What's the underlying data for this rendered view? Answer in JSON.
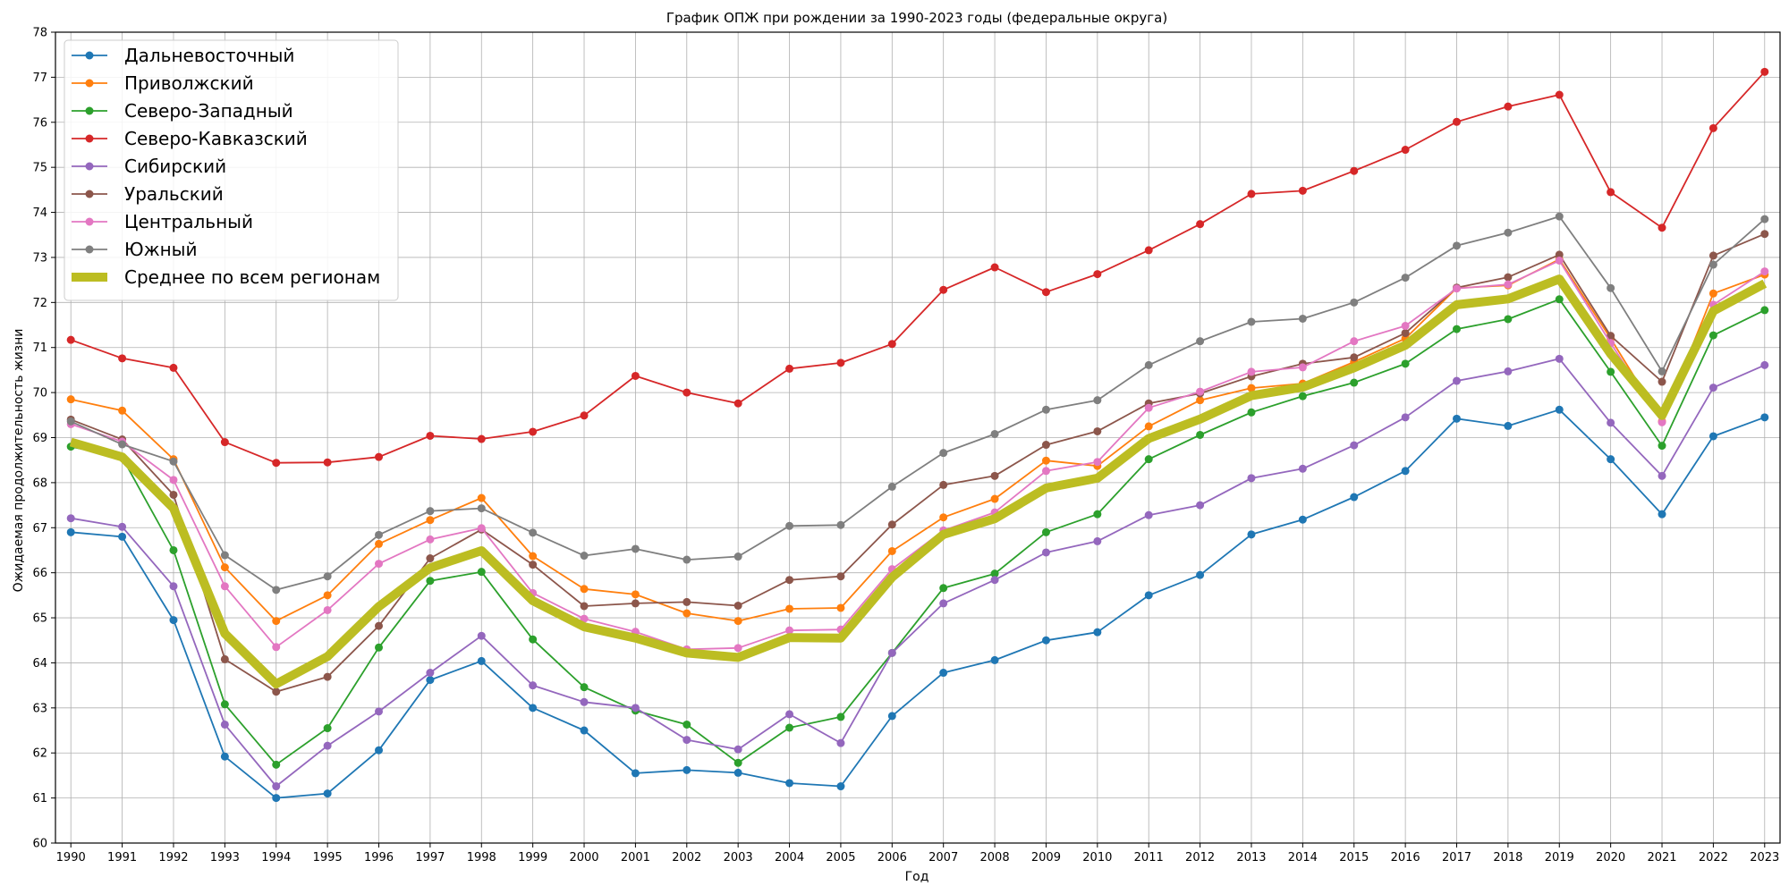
{
  "chart_data": {
    "type": "line",
    "title": "График ОПЖ при рождении за 1990-2023 годы (федеральные округа)",
    "xlabel": "Год",
    "ylabel": "Ожидаемая продолжительность жизни",
    "x": [
      1990,
      1991,
      1992,
      1993,
      1994,
      1995,
      1996,
      1997,
      1998,
      1999,
      2000,
      2001,
      2002,
      2003,
      2004,
      2005,
      2006,
      2007,
      2008,
      2009,
      2010,
      2011,
      2012,
      2013,
      2014,
      2015,
      2016,
      2017,
      2018,
      2019,
      2020,
      2021,
      2022,
      2023
    ],
    "xlim": [
      1989.7,
      2023.3
    ],
    "ylim": [
      60,
      78
    ],
    "yticks": [
      60,
      61,
      62,
      63,
      64,
      65,
      66,
      67,
      68,
      69,
      70,
      71,
      72,
      73,
      74,
      75,
      76,
      77,
      78
    ],
    "grid": true,
    "legend_position": "top-left",
    "series": [
      {
        "name": "Дальневосточный",
        "color": "#1f77b4",
        "marker": "circle",
        "values": [
          66.9,
          66.8,
          64.95,
          61.92,
          61.0,
          61.1,
          62.06,
          63.62,
          64.04,
          63.0,
          62.5,
          61.55,
          61.62,
          61.56,
          61.33,
          61.26,
          62.82,
          63.78,
          64.06,
          64.5,
          64.68,
          65.5,
          65.95,
          66.85,
          67.18,
          67.68,
          68.26,
          69.42,
          69.26,
          69.62,
          68.52,
          67.3,
          69.03,
          69.45
        ]
      },
      {
        "name": "Приволжский",
        "color": "#ff7f0e",
        "marker": "circle",
        "values": [
          69.85,
          69.6,
          68.52,
          66.12,
          64.93,
          65.5,
          66.64,
          67.17,
          67.66,
          66.37,
          65.64,
          65.52,
          65.1,
          64.93,
          65.2,
          65.22,
          66.48,
          67.23,
          67.64,
          68.49,
          68.37,
          69.25,
          69.83,
          70.1,
          70.2,
          70.68,
          71.2,
          72.32,
          72.38,
          72.96,
          71.2,
          69.36,
          72.2,
          72.62
        ]
      },
      {
        "name": "Северо-Западный",
        "color": "#2ca02c",
        "marker": "circle",
        "values": [
          68.8,
          68.56,
          66.5,
          63.08,
          61.74,
          62.55,
          64.34,
          65.82,
          66.02,
          64.52,
          63.46,
          62.94,
          62.63,
          61.78,
          62.56,
          62.8,
          64.22,
          65.66,
          65.98,
          66.9,
          67.3,
          68.52,
          69.06,
          69.56,
          69.92,
          70.22,
          70.64,
          71.41,
          71.63,
          72.07,
          70.46,
          68.82,
          71.27,
          71.83
        ]
      },
      {
        "name": "Северо-Кавказский",
        "color": "#d62728",
        "marker": "circle",
        "values": [
          71.17,
          70.76,
          70.55,
          68.9,
          68.44,
          68.45,
          68.57,
          69.04,
          68.97,
          69.13,
          69.49,
          70.37,
          70.0,
          69.76,
          70.53,
          70.66,
          71.08,
          72.28,
          72.78,
          72.23,
          72.63,
          73.16,
          73.74,
          74.41,
          74.48,
          74.92,
          75.39,
          76.01,
          76.35,
          76.61,
          74.45,
          73.66,
          75.87,
          77.12
        ]
      },
      {
        "name": "Сибирский",
        "color": "#9467bd",
        "marker": "circle",
        "values": [
          67.21,
          67.02,
          65.7,
          62.63,
          61.26,
          62.16,
          62.92,
          63.78,
          64.6,
          63.5,
          63.13,
          63.0,
          62.29,
          62.08,
          62.86,
          62.22,
          64.22,
          65.32,
          65.84,
          66.45,
          66.7,
          67.28,
          67.5,
          68.1,
          68.31,
          68.83,
          69.45,
          70.26,
          70.47,
          70.75,
          69.33,
          68.15,
          70.11,
          70.61
        ]
      },
      {
        "name": "Уральский",
        "color": "#8c564b",
        "marker": "circle",
        "values": [
          69.4,
          68.96,
          67.73,
          64.08,
          63.36,
          63.69,
          64.82,
          66.32,
          66.96,
          66.18,
          65.26,
          65.32,
          65.35,
          65.27,
          65.84,
          65.92,
          67.07,
          67.95,
          68.15,
          68.84,
          69.14,
          69.76,
          69.98,
          70.36,
          70.64,
          70.78,
          71.32,
          72.33,
          72.56,
          73.06,
          71.26,
          70.24,
          73.04,
          73.52
        ]
      },
      {
        "name": "Центральный",
        "color": "#e377c2",
        "marker": "circle",
        "values": [
          69.3,
          68.91,
          68.06,
          65.7,
          64.35,
          65.17,
          66.2,
          66.74,
          66.99,
          65.55,
          64.98,
          64.69,
          64.3,
          64.33,
          64.72,
          64.74,
          66.08,
          66.94,
          67.34,
          68.26,
          68.46,
          69.66,
          70.02,
          70.46,
          70.56,
          71.14,
          71.48,
          72.31,
          72.4,
          72.93,
          71.1,
          69.34,
          71.95,
          72.69
        ]
      },
      {
        "name": "Южный",
        "color": "#7f7f7f",
        "marker": "circle",
        "values": [
          69.36,
          68.85,
          68.47,
          66.39,
          65.62,
          65.92,
          66.84,
          67.37,
          67.43,
          66.89,
          66.38,
          66.53,
          66.29,
          66.36,
          67.04,
          67.06,
          67.91,
          68.66,
          69.08,
          69.62,
          69.83,
          70.61,
          71.14,
          71.57,
          71.64,
          72.0,
          72.55,
          73.26,
          73.55,
          73.91,
          72.32,
          70.47,
          72.84,
          73.85
        ]
      },
      {
        "name": "Среднее по всем регионам",
        "color": "#bcbd22",
        "marker": "none",
        "thick": true,
        "values": [
          68.9,
          68.57,
          67.43,
          64.65,
          63.53,
          64.14,
          65.25,
          66.11,
          66.49,
          65.38,
          64.8,
          64.55,
          64.22,
          64.12,
          64.56,
          64.55,
          65.9,
          66.85,
          67.2,
          67.88,
          68.1,
          68.98,
          69.41,
          69.93,
          70.12,
          70.55,
          71.05,
          71.95,
          72.08,
          72.52,
          70.86,
          69.49,
          71.81,
          72.42
        ]
      }
    ]
  }
}
